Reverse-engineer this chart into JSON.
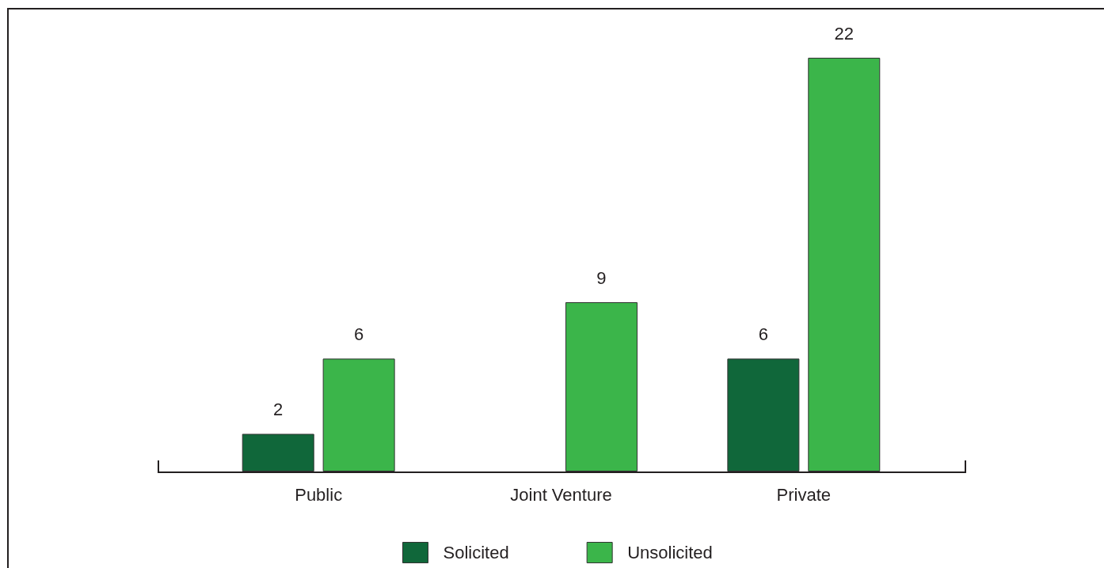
{
  "chart_data": {
    "type": "bar",
    "categories": [
      "Public",
      "Joint Venture",
      "Private"
    ],
    "series": [
      {
        "name": "Solicited",
        "color": "#10673a",
        "values": [
          2,
          null,
          6
        ]
      },
      {
        "name": "Unsolicited",
        "color": "#3bb54a",
        "values": [
          6,
          9,
          22
        ]
      }
    ],
    "data_labels": true,
    "legend": "bottom"
  }
}
